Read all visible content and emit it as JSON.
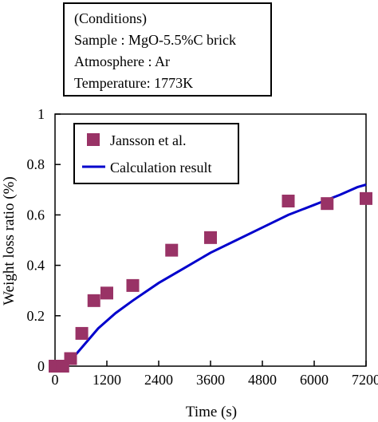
{
  "conditions": {
    "title": "(Conditions)",
    "lines": [
      "Sample : MgO-5.5%C brick",
      "Atmosphere : Ar",
      "Temperature: 1773K"
    ]
  },
  "chart_data": {
    "type": "scatter",
    "xlabel": "Time (s)",
    "ylabel": "Weight loss ratio (%)",
    "xlim": [
      0,
      7200
    ],
    "ylim": [
      0,
      1
    ],
    "xticks": [
      0,
      1200,
      2400,
      3600,
      4800,
      6000,
      7200
    ],
    "yticks": [
      0,
      0.2,
      0.4,
      0.6,
      0.8,
      1
    ],
    "ytick_labels": [
      "0",
      "0.2",
      "0.4",
      "0.6",
      "0.8",
      "1"
    ],
    "legend_position": "top-left",
    "series": [
      {
        "name": "Jansson et al.",
        "type": "scatter",
        "color": "#993366",
        "x": [
          0,
          180,
          360,
          620,
          900,
          1200,
          1800,
          2700,
          3600,
          5400,
          6300,
          7200
        ],
        "y": [
          0.0,
          0.0,
          0.03,
          0.13,
          0.26,
          0.29,
          0.32,
          0.46,
          0.51,
          0.655,
          0.645,
          0.665
        ]
      },
      {
        "name": "Calculation result",
        "type": "line",
        "color": "#0000cc",
        "x": [
          0,
          200,
          400,
          700,
          1000,
          1400,
          1800,
          2400,
          3000,
          3600,
          4200,
          4800,
          5400,
          6000,
          6600,
          7000,
          7200
        ],
        "y": [
          0.0,
          0.005,
          0.03,
          0.09,
          0.15,
          0.21,
          0.26,
          0.33,
          0.39,
          0.45,
          0.5,
          0.55,
          0.6,
          0.64,
          0.68,
          0.71,
          0.72
        ]
      }
    ]
  }
}
